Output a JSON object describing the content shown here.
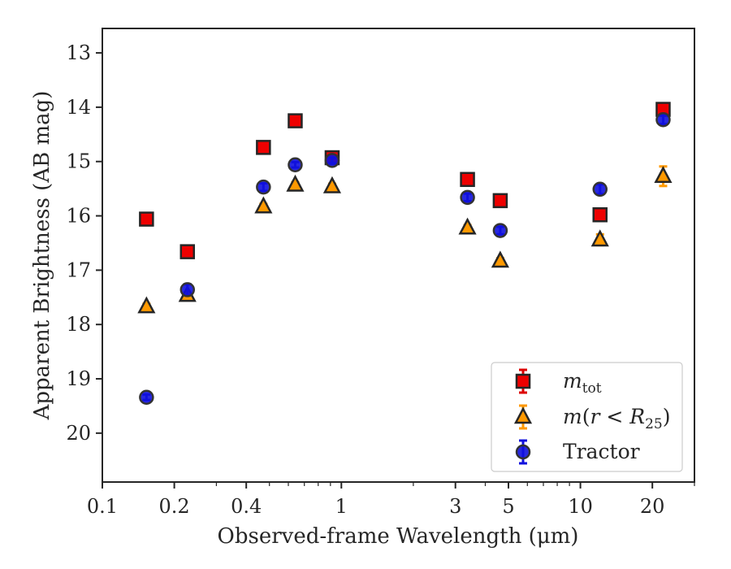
{
  "chart_data": {
    "type": "scatter",
    "xlabel": "Observed-frame Wavelength (μm)",
    "ylabel": "Apparent Brightness (AB mag)",
    "xscale": "log",
    "xlim": [
      0.1,
      30
    ],
    "ylim": [
      20.9,
      12.55
    ],
    "y_inverted": true,
    "x_ticks": [
      {
        "value": 0.1,
        "label": "0.1"
      },
      {
        "value": 0.2,
        "label": "0.2"
      },
      {
        "value": 0.4,
        "label": "0.4"
      },
      {
        "value": 1,
        "label": "1"
      },
      {
        "value": 3,
        "label": "3"
      },
      {
        "value": 5,
        "label": "5"
      },
      {
        "value": 10,
        "label": "10"
      },
      {
        "value": 20,
        "label": "20"
      }
    ],
    "y_ticks": [
      13,
      14,
      15,
      16,
      17,
      18,
      19,
      20
    ],
    "grid": false,
    "legend_position": "lower-right",
    "series": [
      {
        "name": "m_tot",
        "marker": "square",
        "color": "#ee0000",
        "errcolor": "#dd0000",
        "points": [
          {
            "x": 0.153,
            "y": 16.06,
            "err": 0.06
          },
          {
            "x": 0.227,
            "y": 16.66,
            "err": 0.06
          },
          {
            "x": 0.472,
            "y": 14.74,
            "err": 0.05
          },
          {
            "x": 0.641,
            "y": 14.25,
            "err": 0.05
          },
          {
            "x": 0.915,
            "y": 14.93,
            "err": 0.05
          },
          {
            "x": 3.37,
            "y": 15.33,
            "err": 0.05
          },
          {
            "x": 4.62,
            "y": 15.72,
            "err": 0.05
          },
          {
            "x": 12.08,
            "y": 15.98,
            "err": 0.05
          },
          {
            "x": 22.19,
            "y": 14.04,
            "err": 0.08
          }
        ]
      },
      {
        "name": "m(r < R25)",
        "marker": "triangle",
        "color": "#ff9900",
        "errcolor": "#ff9900",
        "points": [
          {
            "x": 0.153,
            "y": 17.67,
            "err": 0.05
          },
          {
            "x": 0.227,
            "y": 17.46,
            "err": 0.05
          },
          {
            "x": 0.472,
            "y": 15.83,
            "err": 0.05
          },
          {
            "x": 0.641,
            "y": 15.43,
            "err": 0.05
          },
          {
            "x": 0.915,
            "y": 15.46,
            "err": 0.05
          },
          {
            "x": 3.37,
            "y": 16.22,
            "err": 0.05
          },
          {
            "x": 4.62,
            "y": 16.83,
            "err": 0.05
          },
          {
            "x": 12.08,
            "y": 16.44,
            "err": 0.1
          },
          {
            "x": 22.19,
            "y": 15.27,
            "err": 0.18
          }
        ]
      },
      {
        "name": "Tractor",
        "marker": "circle",
        "color": "#1111dd",
        "errcolor": "#1111dd",
        "points": [
          {
            "x": 0.153,
            "y": 19.34,
            "err": 0.05
          },
          {
            "x": 0.227,
            "y": 17.36,
            "err": 0.1
          },
          {
            "x": 0.472,
            "y": 15.47,
            "err": 0.07
          },
          {
            "x": 0.641,
            "y": 15.06,
            "err": 0.05
          },
          {
            "x": 0.915,
            "y": 14.98,
            "err": 0.05
          },
          {
            "x": 3.37,
            "y": 15.66,
            "err": 0.07
          },
          {
            "x": 4.62,
            "y": 16.27,
            "err": 0.07
          },
          {
            "x": 12.08,
            "y": 15.51,
            "err": 0.09
          },
          {
            "x": 22.19,
            "y": 14.23,
            "err": 0.08
          }
        ]
      }
    ]
  }
}
